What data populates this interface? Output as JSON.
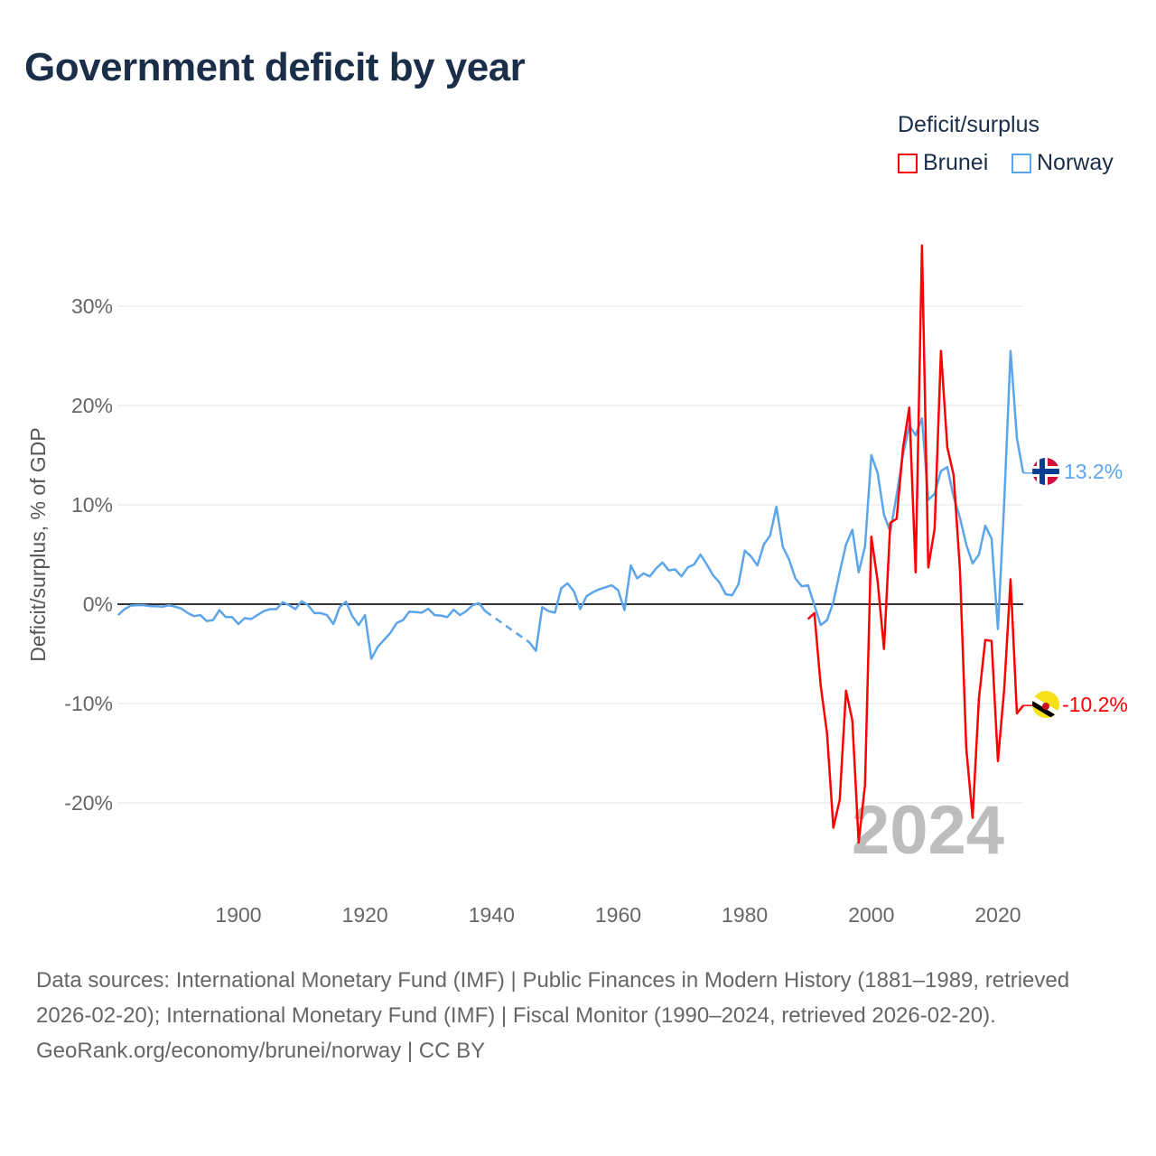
{
  "title": "Government deficit by year",
  "legend": {
    "title": "Deficit/surplus",
    "items": [
      {
        "label": "Brunei",
        "color": "#ff0000"
      },
      {
        "label": "Norway",
        "color": "#5da5ea"
      }
    ]
  },
  "watermark_year": "2024",
  "end_labels": {
    "norway": "13.2%",
    "brunei": "-10.2%"
  },
  "footer": {
    "sources": "Data sources: International Monetary Fund (IMF) | Public Finances in Modern History (1881–1989, retrieved 2026-02-20); International Monetary Fund (IMF) | Fiscal Monitor (1990–2024, retrieved 2026-02-20).",
    "credit": "GeoRank.org/economy/brunei/norway | CC BY"
  },
  "chart_data": {
    "type": "line",
    "title": "Government deficit by year",
    "xlabel": "",
    "ylabel": "Deficit/surplus, % of GDP",
    "xlim": [
      1881,
      2024
    ],
    "ylim": [
      -26,
      37
    ],
    "x_ticks": [
      "1900",
      "1920",
      "1940",
      "1960",
      "1980",
      "2000",
      "2020"
    ],
    "x_tick_values": [
      1900,
      1920,
      1940,
      1960,
      1980,
      2000,
      2020
    ],
    "y_ticks": [
      "-20%",
      "-10%",
      "0%",
      "10%",
      "20%",
      "30%"
    ],
    "y_tick_values": [
      -20,
      -10,
      0,
      10,
      20,
      30
    ],
    "grid": true,
    "legend_position": "top-right",
    "series": [
      {
        "name": "Norway",
        "color": "#5da5ea",
        "start_year": 1881,
        "values": [
          -1.1,
          -0.5,
          -0.15,
          -0.1,
          -0.1,
          -0.2,
          -0.2,
          -0.25,
          -0.1,
          -0.25,
          -0.45,
          -0.9,
          -1.2,
          -1.1,
          -1.7,
          -1.6,
          -0.6,
          -1.3,
          -1.3,
          -2.0,
          -1.4,
          -1.5,
          -1.1,
          -0.7,
          -0.5,
          -0.5,
          0.2,
          -0.1,
          -0.5,
          0.3,
          -0.1,
          -0.9,
          -0.9,
          -1.1,
          -2.0,
          -0.3,
          0.25,
          -1.2,
          -2.1,
          -1.1,
          -5.5,
          -4.3,
          -3.6,
          -2.9,
          -1.9,
          -1.6,
          -0.75,
          -0.8,
          -0.85,
          -0.45,
          -1.1,
          -1.15,
          -1.3,
          -0.55,
          -1.1,
          -0.7,
          -0.1,
          0.1,
          -0.7,
          null,
          null,
          null,
          null,
          null,
          null,
          -3.85,
          -4.7,
          -0.3,
          -0.7,
          -0.85,
          1.6,
          2.1,
          1.3,
          -0.5,
          0.8,
          1.2,
          1.5,
          1.7,
          1.9,
          1.4,
          -0.6,
          3.9,
          2.6,
          3.1,
          2.8,
          3.6,
          4.2,
          3.4,
          3.5,
          2.8,
          3.7,
          4.0,
          5.0,
          4.0,
          2.9,
          2.2,
          1.0,
          0.9,
          2.0,
          5.4,
          4.8,
          3.9,
          6.0,
          6.9,
          9.8,
          5.8,
          4.5,
          2.6,
          1.8,
          1.9,
          -0.1,
          -2.1,
          -1.6,
          0.2,
          3.2,
          6.0,
          7.5,
          3.2,
          5.8,
          15.0,
          13.2,
          9.0,
          7.3,
          11.0,
          15.0,
          18.0,
          17.0,
          18.7,
          10.5,
          11.1,
          13.4,
          13.8,
          10.8,
          8.7,
          6.0,
          4.1,
          5.0,
          7.9,
          6.6,
          -2.5,
          10.3,
          25.5,
          16.7,
          13.2
        ]
      },
      {
        "name": "Brunei",
        "color": "#ff0000",
        "start_year": 1990,
        "values": [
          -1.5,
          -0.9,
          -8.2,
          -13.0,
          -22.5,
          -19.7,
          -8.7,
          -11.7,
          -24.0,
          -18.2,
          6.8,
          2.3,
          -4.5,
          8.2,
          8.6,
          15.7,
          19.8,
          3.2,
          36.1,
          3.7,
          7.6,
          25.5,
          15.8,
          13.0,
          3.5,
          -14.5,
          -21.5,
          -9.5,
          -3.6,
          -3.7,
          -15.8,
          -8.5,
          2.5,
          -11.0,
          -10.2
        ]
      }
    ]
  }
}
